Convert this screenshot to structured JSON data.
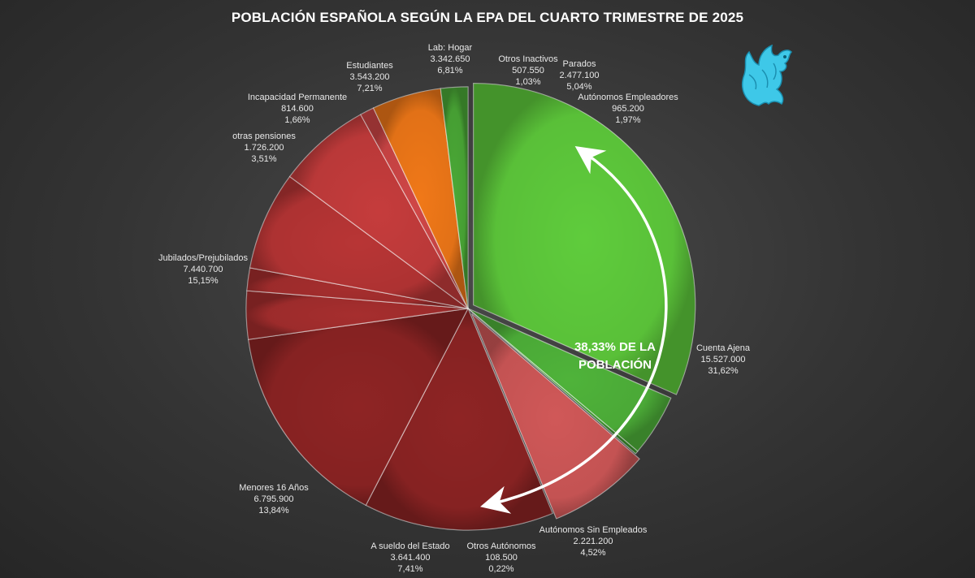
{
  "chart_data": {
    "type": "pie",
    "title": "POBLACIÓN ESPAÑOLA SEGÚN LA EPA DEL CUARTO TRIMESTRE DE 2025",
    "start_angle_deg": 90,
    "direction": "clockwise",
    "slices": [
      {
        "label": "Cuenta Ajena",
        "value": "15.527.000",
        "percent": "31,62%",
        "pct": 31.62,
        "color": "#5fcc3c",
        "explode": 1
      },
      {
        "label": "Autónomos Sin Empleados",
        "value": "2.221.200",
        "percent": "4,52%",
        "pct": 4.52,
        "color": "#4fb33a",
        "explode": 0
      },
      {
        "label": "Otros Autónomos",
        "value": "108.500",
        "percent": "0,22%",
        "pct": 0.22,
        "color": "#3e9a2e",
        "explode": 0
      },
      {
        "label": "A sueldo del Estado",
        "value": "3.641.400",
        "percent": "7,41%",
        "pct": 7.41,
        "color": "#d05858",
        "explode": 1
      },
      {
        "label": "Menores 16 Años",
        "value": "6.795.900",
        "percent": "13,84%",
        "pct": 13.84,
        "color": "#8e2424",
        "explode": 0
      },
      {
        "label": "Jubilados/Prejubilados",
        "value": "7.440.700",
        "percent": "15,15%",
        "pct": 15.15,
        "color": "#8e2424",
        "explode": 0
      },
      {
        "label": "otras pensiones",
        "value": "1.726.200",
        "percent": "3,51%",
        "pct": 3.51,
        "color": "#a62e2e",
        "explode": 0
      },
      {
        "label": "Incapacidad Permanente",
        "value": "814.600",
        "percent": "1,66%",
        "pct": 1.66,
        "color": "#a62e2e",
        "explode": 0
      },
      {
        "label": "Estudiantes",
        "value": "3.543.200",
        "percent": "7,21%",
        "pct": 7.21,
        "color": "#b83535",
        "explode": 0
      },
      {
        "label": "Lab: Hogar",
        "value": "3.342.650",
        "percent": "6,81%",
        "pct": 6.81,
        "color": "#c53c3c",
        "explode": 0
      },
      {
        "label": "Otros Inactivos",
        "value": "507.550",
        "percent": "1,03%",
        "pct": 1.03,
        "color": "#cf4646",
        "explode": 0
      },
      {
        "label": "Parados",
        "value": "2.477.100",
        "percent": "5,04%",
        "pct": 5.04,
        "color": "#f07818",
        "explode": 0
      },
      {
        "label": "Autónomos Empleadores",
        "value": "965.200",
        "percent": "1,97%",
        "pct": 1.97,
        "color": "#4aa836",
        "explode": 0
      }
    ],
    "annotations": [
      {
        "text_lines": [
          "38,33% DE LA",
          "POBLACIÓN"
        ]
      }
    ]
  },
  "logo": {
    "name": "griffin-logo",
    "color": "#3ec8e8"
  }
}
